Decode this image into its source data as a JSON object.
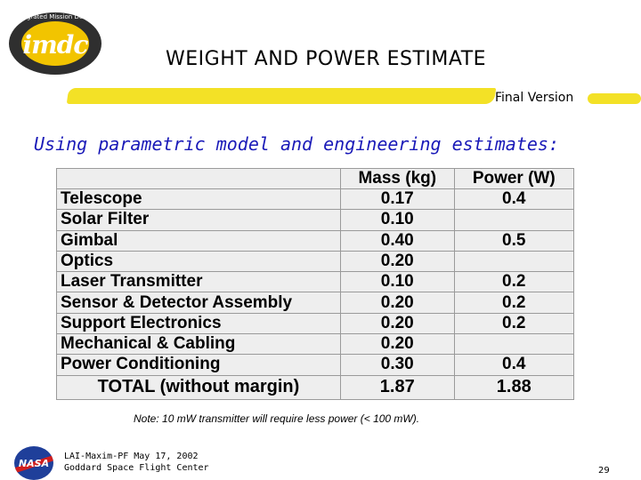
{
  "header": {
    "logo_text": "imdc",
    "logo_ring_text": "Integrated Mission Design Center",
    "title": "WEIGHT AND POWER ESTIMATE",
    "version": "Final Version"
  },
  "subtitle": "Using parametric model and engineering estimates:",
  "table": {
    "columns": [
      "",
      "Mass (kg)",
      "Power (W)"
    ],
    "rows": [
      {
        "item": "Telescope",
        "mass": "0.17",
        "power": "0.4"
      },
      {
        "item": "Solar Filter",
        "mass": "0.10",
        "power": ""
      },
      {
        "item": "Gimbal",
        "mass": "0.40",
        "power": "0.5"
      },
      {
        "item": "Optics",
        "mass": "0.20",
        "power": ""
      },
      {
        "item": "Laser Transmitter",
        "mass": "0.10",
        "power": "0.2"
      },
      {
        "item": "Sensor & Detector Assembly",
        "mass": "0.20",
        "power": "0.2"
      },
      {
        "item": "Support Electronics",
        "mass": "0.20",
        "power": "0.2"
      },
      {
        "item": "Mechanical & Cabling",
        "mass": "0.20",
        "power": ""
      },
      {
        "item": "Power Conditioning",
        "mass": "0.30",
        "power": "0.4"
      }
    ],
    "total": {
      "item": "TOTAL (without margin)",
      "mass": "1.87",
      "power": "1.88"
    }
  },
  "note": "Note: 10 mW transmitter will require less power (< 100 mW).",
  "footer": {
    "nasa_label": "NASA",
    "line1": "LAI-Maxim-PF May 17, 2002",
    "line2": "Goddard Space Flight Center",
    "page_number": "29"
  }
}
